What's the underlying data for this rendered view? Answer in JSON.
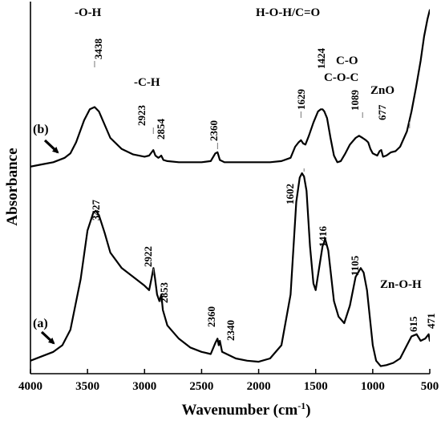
{
  "chart_data": {
    "type": "line",
    "xlabel": "Wavenumber (cm",
    "xlabel_sup": "-1",
    "xlabel_close": ")",
    "ylabel": "Absorbance",
    "xlim": [
      4000,
      500
    ],
    "x_reversed": true,
    "xticks": [
      4000,
      3500,
      3000,
      2500,
      2000,
      1500,
      1000,
      500
    ],
    "yticks": [],
    "grid": false,
    "legend": "none",
    "series": [
      {
        "name": "(a)",
        "points": [
          [
            4000,
            0.03
          ],
          [
            3900,
            0.05
          ],
          [
            3800,
            0.07
          ],
          [
            3720,
            0.1
          ],
          [
            3650,
            0.17
          ],
          [
            3560,
            0.4
          ],
          [
            3500,
            0.62
          ],
          [
            3450,
            0.7
          ],
          [
            3427,
            0.71
          ],
          [
            3400,
            0.69
          ],
          [
            3350,
            0.61
          ],
          [
            3300,
            0.52
          ],
          [
            3200,
            0.45
          ],
          [
            3100,
            0.41
          ],
          [
            3000,
            0.37
          ],
          [
            2960,
            0.35
          ],
          [
            2940,
            0.4
          ],
          [
            2922,
            0.45
          ],
          [
            2910,
            0.41
          ],
          [
            2890,
            0.33
          ],
          [
            2870,
            0.3
          ],
          [
            2853,
            0.33
          ],
          [
            2840,
            0.26
          ],
          [
            2800,
            0.19
          ],
          [
            2700,
            0.13
          ],
          [
            2600,
            0.09
          ],
          [
            2500,
            0.07
          ],
          [
            2420,
            0.06
          ],
          [
            2380,
            0.11
          ],
          [
            2360,
            0.13
          ],
          [
            2350,
            0.1
          ],
          [
            2340,
            0.12
          ],
          [
            2320,
            0.07
          ],
          [
            2200,
            0.04
          ],
          [
            2100,
            0.03
          ],
          [
            2000,
            0.025
          ],
          [
            1900,
            0.04
          ],
          [
            1800,
            0.1
          ],
          [
            1720,
            0.33
          ],
          [
            1670,
            0.75
          ],
          [
            1640,
            0.86
          ],
          [
            1620,
            0.88
          ],
          [
            1602,
            0.865
          ],
          [
            1580,
            0.8
          ],
          [
            1550,
            0.55
          ],
          [
            1520,
            0.38
          ],
          [
            1500,
            0.35
          ],
          [
            1470,
            0.45
          ],
          [
            1440,
            0.55
          ],
          [
            1416,
            0.58
          ],
          [
            1390,
            0.53
          ],
          [
            1340,
            0.3
          ],
          [
            1300,
            0.23
          ],
          [
            1250,
            0.2
          ],
          [
            1200,
            0.28
          ],
          [
            1150,
            0.41
          ],
          [
            1105,
            0.45
          ],
          [
            1080,
            0.43
          ],
          [
            1050,
            0.35
          ],
          [
            1000,
            0.1
          ],
          [
            970,
            0.03
          ],
          [
            930,
            0.005
          ],
          [
            880,
            0.01
          ],
          [
            820,
            0.02
          ],
          [
            760,
            0.04
          ],
          [
            700,
            0.1
          ],
          [
            660,
            0.14
          ],
          [
            615,
            0.15
          ],
          [
            580,
            0.12
          ],
          [
            540,
            0.13
          ],
          [
            510,
            0.15
          ],
          [
            500,
            0.12
          ]
        ]
      },
      {
        "name": "(b)",
        "points": [
          [
            4000,
            0.91
          ],
          [
            3900,
            0.92
          ],
          [
            3800,
            0.93
          ],
          [
            3700,
            0.95
          ],
          [
            3650,
            0.97
          ],
          [
            3600,
            1.02
          ],
          [
            3530,
            1.12
          ],
          [
            3480,
            1.17
          ],
          [
            3438,
            1.18
          ],
          [
            3400,
            1.16
          ],
          [
            3350,
            1.1
          ],
          [
            3300,
            1.04
          ],
          [
            3200,
            0.99
          ],
          [
            3100,
            0.965
          ],
          [
            3000,
            0.955
          ],
          [
            2960,
            0.96
          ],
          [
            2930,
            0.98
          ],
          [
            2923,
            0.985
          ],
          [
            2905,
            0.96
          ],
          [
            2880,
            0.95
          ],
          [
            2865,
            0.955
          ],
          [
            2854,
            0.96
          ],
          [
            2835,
            0.94
          ],
          [
            2800,
            0.935
          ],
          [
            2700,
            0.93
          ],
          [
            2600,
            0.93
          ],
          [
            2500,
            0.93
          ],
          [
            2420,
            0.935
          ],
          [
            2380,
            0.97
          ],
          [
            2360,
            0.975
          ],
          [
            2340,
            0.94
          ],
          [
            2300,
            0.93
          ],
          [
            2200,
            0.93
          ],
          [
            2100,
            0.93
          ],
          [
            2000,
            0.93
          ],
          [
            1900,
            0.93
          ],
          [
            1800,
            0.935
          ],
          [
            1720,
            0.95
          ],
          [
            1680,
            1.0
          ],
          [
            1650,
            1.02
          ],
          [
            1629,
            1.03
          ],
          [
            1610,
            1.015
          ],
          [
            1590,
            1.01
          ],
          [
            1560,
            1.05
          ],
          [
            1520,
            1.11
          ],
          [
            1480,
            1.16
          ],
          [
            1455,
            1.17
          ],
          [
            1440,
            1.17
          ],
          [
            1424,
            1.16
          ],
          [
            1400,
            1.13
          ],
          [
            1370,
            1.04
          ],
          [
            1340,
            0.96
          ],
          [
            1310,
            0.93
          ],
          [
            1280,
            0.935
          ],
          [
            1240,
            0.97
          ],
          [
            1200,
            1.01
          ],
          [
            1150,
            1.04
          ],
          [
            1120,
            1.05
          ],
          [
            1089,
            1.04
          ],
          [
            1060,
            1.03
          ],
          [
            1040,
            1.02
          ],
          [
            1020,
            0.99
          ],
          [
            1000,
            0.97
          ],
          [
            960,
            0.96
          ],
          [
            940,
            0.98
          ],
          [
            925,
            0.985
          ],
          [
            910,
            0.955
          ],
          [
            880,
            0.96
          ],
          [
            840,
            0.975
          ],
          [
            800,
            0.98
          ],
          [
            760,
            1.0
          ],
          [
            700,
            1.07
          ],
          [
            660,
            1.16
          ],
          [
            620,
            1.27
          ],
          [
            580,
            1.39
          ],
          [
            550,
            1.5
          ],
          [
            520,
            1.58
          ],
          [
            500,
            1.62
          ]
        ]
      }
    ],
    "annotations": [
      {
        "text": "-O-H",
        "kind": "group"
      },
      {
        "text": "-C-H",
        "kind": "group"
      },
      {
        "text": "H-O-H/C=O",
        "kind": "group"
      },
      {
        "text": "C-O",
        "kind": "group"
      },
      {
        "text": "C-O-C",
        "kind": "group"
      },
      {
        "text": "ZnO",
        "kind": "group"
      },
      {
        "text": "Zn-O-H",
        "kind": "group"
      },
      {
        "text": "3438",
        "x": 3438,
        "series": "(b)"
      },
      {
        "text": "2923",
        "x": 2923,
        "series": "(b)"
      },
      {
        "text": "2854",
        "x": 2854,
        "series": "(b)"
      },
      {
        "text": "2360",
        "x": 2360,
        "series": "(b)"
      },
      {
        "text": "1629",
        "x": 1629,
        "series": "(b)"
      },
      {
        "text": "1424",
        "x": 1424,
        "series": "(b)"
      },
      {
        "text": "1089",
        "x": 1089,
        "series": "(b)"
      },
      {
        "text": "677",
        "x": 677,
        "series": "(b)"
      },
      {
        "text": "3427",
        "x": 3427,
        "series": "(a)"
      },
      {
        "text": "2922",
        "x": 2922,
        "series": "(a)"
      },
      {
        "text": "2853",
        "x": 2853,
        "series": "(a)"
      },
      {
        "text": "2360",
        "x": 2360,
        "series": "(a)"
      },
      {
        "text": "2340",
        "x": 2340,
        "series": "(a)"
      },
      {
        "text": "1602",
        "x": 1602,
        "series": "(a)"
      },
      {
        "text": "1416",
        "x": 1416,
        "series": "(a)"
      },
      {
        "text": "1105",
        "x": 1105,
        "series": "(a)"
      },
      {
        "text": "615",
        "x": 615,
        "series": "(a)"
      },
      {
        "text": "471",
        "x": 471,
        "series": "(a)"
      }
    ]
  }
}
